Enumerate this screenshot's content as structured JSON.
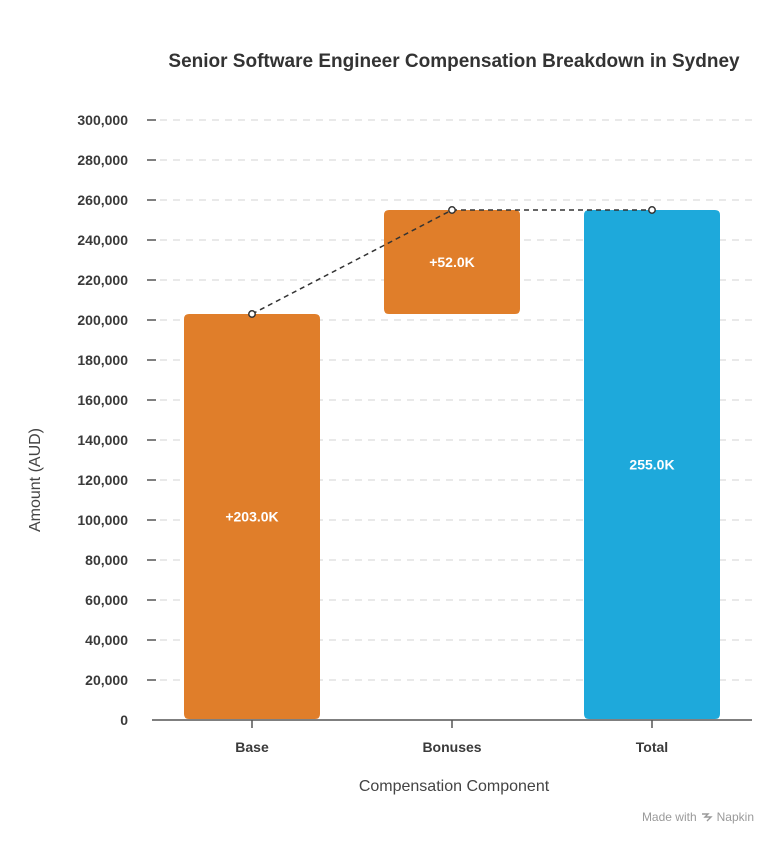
{
  "chart_data": {
    "type": "waterfall",
    "title": "Senior Software Engineer Compensation Breakdown in Sydney",
    "xlabel": "Compensation Component",
    "ylabel": "Amount (AUD)",
    "ylim": [
      0,
      300000
    ],
    "yticks": [
      0,
      20000,
      40000,
      60000,
      80000,
      100000,
      120000,
      140000,
      160000,
      180000,
      200000,
      220000,
      240000,
      260000,
      280000,
      300000
    ],
    "ytick_labels": [
      "0",
      "20,000",
      "40,000",
      "60,000",
      "80,000",
      "100,000",
      "120,000",
      "140,000",
      "160,000",
      "180,000",
      "200,000",
      "220,000",
      "240,000",
      "260,000",
      "280,000",
      "300,000"
    ],
    "categories": [
      "Base",
      "Bonuses",
      "Total"
    ],
    "steps": [
      {
        "category": "Base",
        "start": 0,
        "end": 203000,
        "label": "+203.0K",
        "kind": "increase",
        "color": "#E07E2A"
      },
      {
        "category": "Bonuses",
        "start": 203000,
        "end": 255000,
        "label": "+52.0K",
        "kind": "increase",
        "color": "#E07E2A"
      },
      {
        "category": "Total",
        "start": 0,
        "end": 255000,
        "label": "255.0K",
        "kind": "total",
        "color": "#1EA9DB"
      }
    ],
    "grid": true
  },
  "watermark": {
    "text": "Made with",
    "brand": "Napkin"
  }
}
